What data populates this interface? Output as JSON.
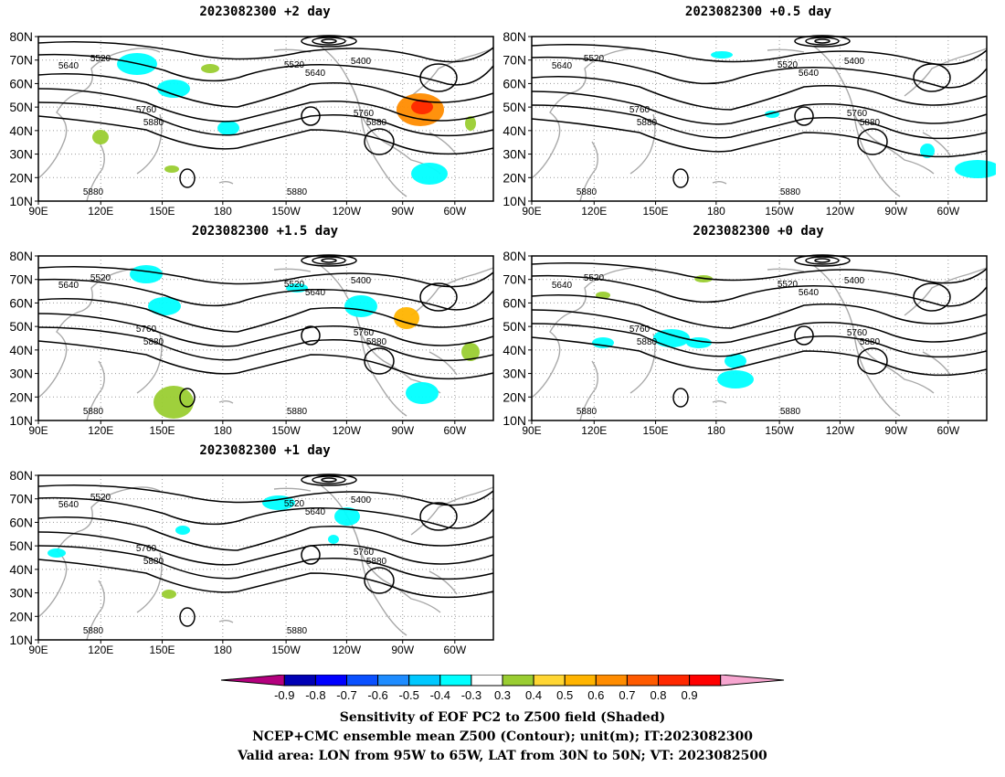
{
  "panels": [
    {
      "id": "p2",
      "title": "2023082300 +2 day",
      "lead": "+2 day"
    },
    {
      "id": "p05",
      "title": "2023082300 +0.5 day",
      "lead": "+0.5 day"
    },
    {
      "id": "p15",
      "title": "2023082300 +1.5 day",
      "lead": "+1.5 day"
    },
    {
      "id": "p0",
      "title": "2023082300 +0 day",
      "lead": "+0 day"
    },
    {
      "id": "p1",
      "title": "2023082300 +1 day",
      "lead": "+1 day"
    }
  ],
  "axes": {
    "lat_labels": [
      "80N",
      "70N",
      "60N",
      "50N",
      "40N",
      "30N",
      "20N",
      "10N"
    ],
    "lon_labels": [
      "90E",
      "120E",
      "150E",
      "180",
      "150W",
      "120W",
      "90W",
      "60W"
    ]
  },
  "contour_labels": {
    "c5400": "5400",
    "c5520": "5520",
    "c5640": "5640",
    "c5760": "5760",
    "c5880": "5880"
  },
  "colorbar": {
    "ticks": [
      "-0.9",
      "-0.8",
      "-0.7",
      "-0.6",
      "-0.5",
      "-0.4",
      "-0.3",
      "0.3",
      "0.4",
      "0.5",
      "0.6",
      "0.7",
      "0.8",
      "0.9"
    ],
    "colors": [
      "#b4007e",
      "#0000b4",
      "#0000ff",
      "#0a50ff",
      "#1e8cff",
      "#00c8ff",
      "#00ffff",
      "#ffffff",
      "#9acd32",
      "#ffd633",
      "#ffb400",
      "#ff8c00",
      "#ff5a00",
      "#ff2800",
      "#ff0000",
      "#f7a6d0"
    ]
  },
  "footer": {
    "line1": "Sensitivity of EOF PC2 to Z500 field (Shaded)",
    "line2": "NCEP+CMC ensemble mean Z500 (Contour); unit(m); IT:2023082300",
    "line3": "Valid area: LON from 95W to 65W, LAT from 30N to 50N; VT: 2023082500"
  }
}
